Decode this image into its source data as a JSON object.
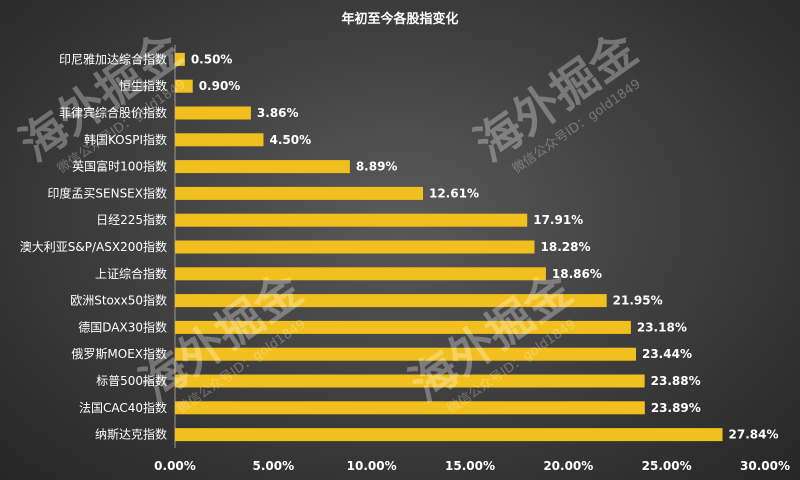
{
  "chart_data": {
    "type": "bar",
    "orientation": "horizontal",
    "title": "年初至今各股指变化",
    "categories": [
      "印尼雅加达综合指数",
      "恒生指数",
      "菲律宾综合股价指数",
      "韩国KOSPI指数",
      "英国富时100指数",
      "印度孟买SENSEX指数",
      "日经225指数",
      "澳大利亚S&P/ASX200指数",
      "上证综合指数",
      "欧洲Stoxx50指数",
      "德国DAX30指数",
      "俄罗斯MOEX指数",
      "标普500指数",
      "法国CAC40指数",
      "纳斯达克指数"
    ],
    "values": [
      0.5,
      0.9,
      3.86,
      4.5,
      8.89,
      12.61,
      17.91,
      18.28,
      18.86,
      21.95,
      23.18,
      23.44,
      23.88,
      23.89,
      27.84
    ],
    "value_labels": [
      "0.50%",
      "0.90%",
      "3.86%",
      "4.50%",
      "8.89%",
      "12.61%",
      "17.91%",
      "18.28%",
      "18.86%",
      "21.95%",
      "23.18%",
      "23.44%",
      "23.88%",
      "23.89%",
      "27.84%"
    ],
    "xlim": [
      0,
      30
    ],
    "xticks": [
      0,
      5,
      10,
      15,
      20,
      25,
      30
    ],
    "xtick_labels": [
      "0.00%",
      "5.00%",
      "10.00%",
      "15.00%",
      "20.00%",
      "25.00%",
      "30.00%"
    ],
    "grid": false,
    "legend": "none",
    "bar_color": "#f2c01e"
  },
  "watermark": {
    "text": "海外掘金",
    "subtext": "微信公众号ID：gold1849"
  }
}
